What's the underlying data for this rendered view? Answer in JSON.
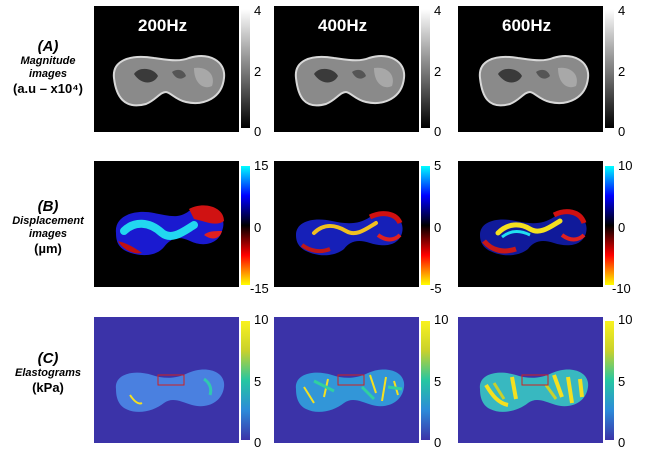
{
  "frequencies": [
    "200Hz",
    "400Hz",
    "600Hz"
  ],
  "rows": [
    {
      "letter": "(A)",
      "name_line1": "Magnitude",
      "name_line2": "images",
      "unit": "(a.u – x10⁴)"
    },
    {
      "letter": "(B)",
      "name_line1": "Displacement",
      "name_line2": "images",
      "unit": "(µm)"
    },
    {
      "letter": "(C)",
      "name_line1": "Elastograms",
      "name_line2": "",
      "unit": "(kPa)"
    }
  ],
  "colorbars": {
    "magnitude": [
      {
        "top": "4",
        "mid": "2",
        "bottom": "0"
      },
      {
        "top": "4",
        "mid": "2",
        "bottom": "0"
      },
      {
        "top": "4",
        "mid": "2",
        "bottom": "0"
      }
    ],
    "displacement": [
      {
        "top": "15",
        "mid": "0",
        "bottom": "-15"
      },
      {
        "top": "5",
        "mid": "0",
        "bottom": "-5"
      },
      {
        "top": "10",
        "mid": "0",
        "bottom": "-10"
      }
    ],
    "elastogram": [
      {
        "top": "10",
        "mid": "5",
        "bottom": "0"
      },
      {
        "top": "10",
        "mid": "5",
        "bottom": "0"
      },
      {
        "top": "10",
        "mid": "5",
        "bottom": "0"
      }
    ]
  },
  "colors": {
    "magnitude_top": "#ffffff",
    "magnitude_bottom": "#000000",
    "displacement_cmap": [
      "#00ffff",
      "#0000ff",
      "#000000",
      "#ff0000",
      "#ffff00"
    ],
    "elastogram_cmap": [
      "#3b33a8",
      "#2c8ad9",
      "#26c6a2",
      "#c9d12c",
      "#f9f21f"
    ]
  }
}
